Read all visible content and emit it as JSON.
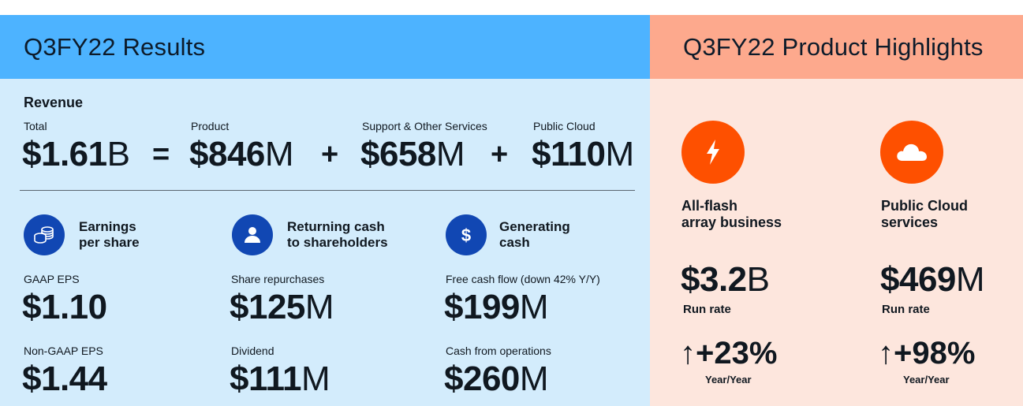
{
  "left_panel": {
    "title": "Q3FY22 Results",
    "revenue": {
      "heading": "Revenue",
      "total": {
        "label": "Total",
        "value": "$1.61",
        "unit": "B"
      },
      "equals": "=",
      "product": {
        "label": "Product",
        "value": "$846",
        "unit": "M"
      },
      "plus1": "+",
      "support": {
        "label": "Support & Other Services",
        "value": "$658",
        "unit": "M"
      },
      "plus2": "+",
      "cloud": {
        "label": "Public Cloud",
        "value": "$110",
        "unit": "M"
      }
    },
    "eps": {
      "icon": "coins-icon",
      "title_line1": "Earnings",
      "title_line2": "per share",
      "gaap_label": "GAAP EPS",
      "gaap_value": "$1.10",
      "nongaap_label": "Non-GAAP EPS",
      "nongaap_value": "$1.44"
    },
    "returning": {
      "icon": "person-icon",
      "title_line1": "Returning cash",
      "title_line2": "to shareholders",
      "repurchase_label": "Share repurchases",
      "repurchase_value": "$125",
      "repurchase_unit": "M",
      "dividend_label": "Dividend",
      "dividend_value": "$111",
      "dividend_unit": "M"
    },
    "generating": {
      "icon": "dollar-icon",
      "title_line1": "Generating",
      "title_line2": "cash",
      "fcf_label": "Free cash flow (down 42% Y/Y)",
      "fcf_value": "$199",
      "fcf_unit": "M",
      "ops_label": "Cash from operations",
      "ops_value": "$260",
      "ops_unit": "M"
    }
  },
  "right_panel": {
    "title": "Q3FY22 Product Highlights",
    "flash": {
      "icon": "lightning-icon",
      "title_line1": "All-flash",
      "title_line2": "array business",
      "value": "$3.2",
      "unit": "B",
      "sub": "Run rate",
      "arrow": "↑",
      "growth": "+23%",
      "growth_label": "Year/Year"
    },
    "cloud": {
      "icon": "cloud-icon",
      "title_line1": "Public Cloud",
      "title_line2": "services",
      "value": "$469",
      "unit": "M",
      "sub": "Run rate",
      "arrow": "↑",
      "growth": "+98%",
      "growth_label": "Year/Year"
    }
  },
  "colors": {
    "left_header": "#4db3ff",
    "left_body": "#d3ecfc",
    "right_header": "#fda98d",
    "right_body": "#fde6dd",
    "icon_blue": "#1147b3",
    "icon_orange": "#fe5000"
  }
}
